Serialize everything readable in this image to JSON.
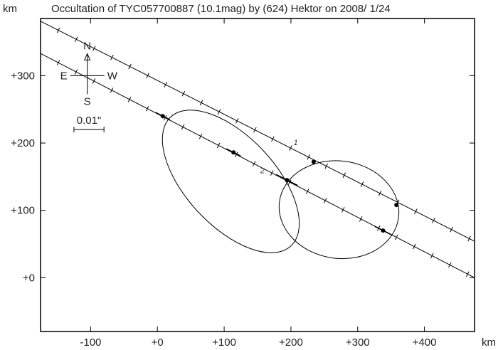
{
  "chart_data": {
    "type": "scatter",
    "title": "Occultation of TYC057700887 (10.1mag) by (624) Hektor on 2008/ 1/24",
    "xlabel": "km",
    "ylabel": "km",
    "xlim": [
      -175,
      475
    ],
    "ylim": [
      -80,
      385
    ],
    "x_ticks": [
      {
        "value": -100,
        "label": "-100"
      },
      {
        "value": 0,
        "label": "+0"
      },
      {
        "value": 100,
        "label": "+100"
      },
      {
        "value": 200,
        "label": "+200"
      },
      {
        "value": 300,
        "label": "+300"
      },
      {
        "value": 400,
        "label": "+400"
      }
    ],
    "y_ticks": [
      {
        "value": 0,
        "label": "+0"
      },
      {
        "value": 100,
        "label": "+100"
      },
      {
        "value": 200,
        "label": "+200"
      },
      {
        "value": 300,
        "label": "+300"
      }
    ],
    "grid": false,
    "chords": [
      {
        "label": "1",
        "start": [
          -175,
          381
        ],
        "end": [
          475,
          54
        ],
        "label_at": [
          204,
          197
        ]
      },
      {
        "label": "2",
        "start": [
          -175,
          333
        ],
        "end": [
          475,
          0
        ],
        "label_at": [
          154,
          155
        ]
      }
    ],
    "chord_ticks_every": 30,
    "ellipses": [
      {
        "cx": 110,
        "cy": 143,
        "rx": 132,
        "ry": 67,
        "rotation_deg": 47
      },
      {
        "cx": 272,
        "cy": 101,
        "rx": 90,
        "ry": 73,
        "rotation_deg": 8
      }
    ],
    "points": [
      {
        "x": 8,
        "y": 240
      },
      {
        "x": 114,
        "y": 186
      },
      {
        "x": 194,
        "y": 145
      },
      {
        "x": 234,
        "y": 172
      },
      {
        "x": 358,
        "y": 108
      },
      {
        "x": 338,
        "y": 70
      }
    ],
    "error_bars": [
      {
        "x": 8,
        "y": 240,
        "half_length": 12
      },
      {
        "x": 114,
        "y": 186,
        "half_length": 12
      },
      {
        "x": 194,
        "y": 145,
        "half_length": 18
      },
      {
        "x": 338,
        "y": 70,
        "half_length": 14
      }
    ],
    "compass": {
      "north": "N",
      "south": "S",
      "east": "E",
      "west": "W",
      "center": [
        -105,
        300
      ]
    },
    "scale_bar": {
      "label": "0.01\"",
      "x_from": -125,
      "x_to": -80,
      "y": 220
    }
  }
}
